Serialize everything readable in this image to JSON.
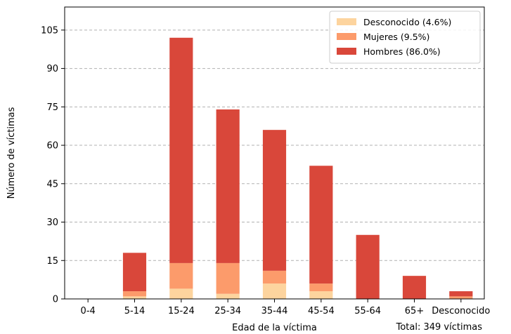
{
  "chart_data": {
    "type": "bar",
    "stacked": true,
    "categories": [
      "0-4",
      "5-14",
      "15-24",
      "25-34",
      "35-44",
      "45-54",
      "55-64",
      "65+",
      "Desconocido"
    ],
    "series": [
      {
        "name": "Desconocido (4.6%)",
        "color": "#fdd49e",
        "values": [
          0,
          1,
          4,
          2,
          6,
          3,
          0,
          0,
          0
        ]
      },
      {
        "name": "Mujeres (9.5%)",
        "color": "#fc9b6b",
        "values": [
          0,
          2,
          10,
          12,
          5,
          3,
          0,
          0,
          1
        ]
      },
      {
        "name": "Hombres (86.0%)",
        "color": "#d9473a",
        "values": [
          0,
          15,
          88,
          60,
          55,
          46,
          25,
          9,
          2
        ]
      }
    ],
    "xlabel": "Edad de la víctima",
    "ylabel": "Número de víctimas",
    "ylim": [
      0,
      114
    ],
    "yticks": [
      0,
      15,
      30,
      45,
      60,
      75,
      90,
      105
    ],
    "grid": true,
    "legend_position": "top-right",
    "footnote": "Total: 349 víctimas"
  }
}
